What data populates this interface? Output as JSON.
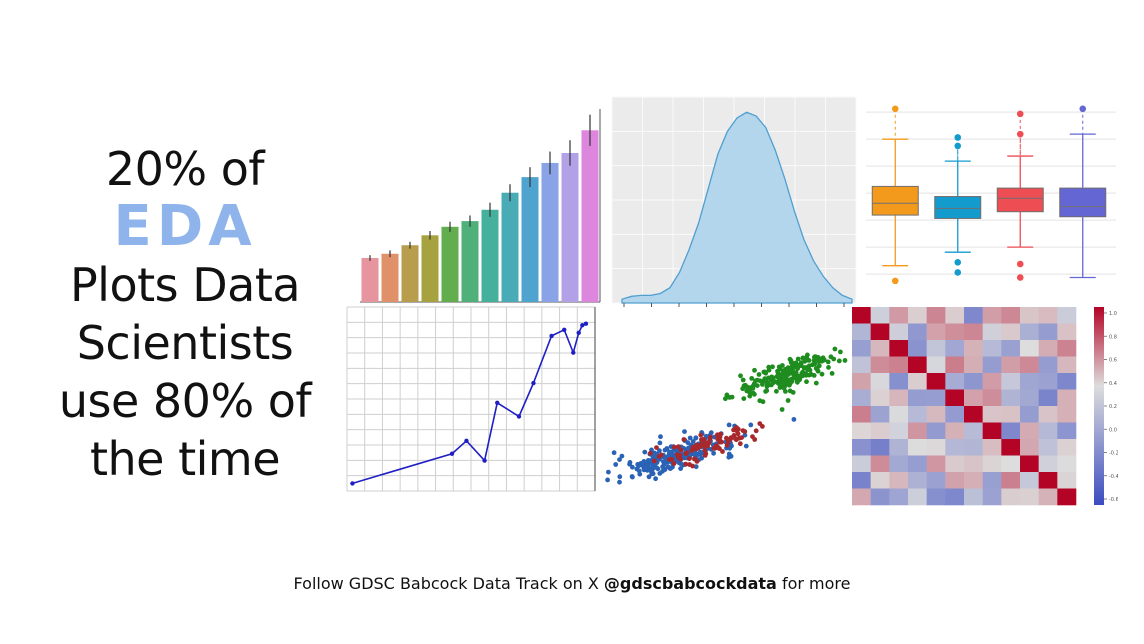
{
  "headline": {
    "line1": "20% of",
    "line2": "EDA",
    "line3": "Plots Data",
    "line4": "Scientists",
    "line5": "use 80% of",
    "line6": "the time"
  },
  "footer": {
    "prefix": "Follow GDSC Babcock Data Track on X",
    "handle": "@gdscbabcockdata",
    "suffix": "for more"
  },
  "colors": {
    "eda_accent": "#8fb4ec"
  },
  "chart_data": [
    {
      "type": "bar",
      "categories": [
        "",
        "",
        "",
        "",
        "",
        "",
        "",
        "",
        "",
        "",
        "",
        ""
      ],
      "values": [
        1.55,
        1.7,
        2.0,
        2.35,
        2.65,
        2.85,
        3.25,
        3.85,
        4.4,
        4.9,
        5.25,
        6.05
      ],
      "errors": [
        0.1,
        0.12,
        0.12,
        0.15,
        0.18,
        0.2,
        0.25,
        0.3,
        0.35,
        0.4,
        0.45,
        0.55
      ],
      "colors": [
        "#e6959e",
        "#e0916a",
        "#b89d4c",
        "#a6a23f",
        "#62ad4e",
        "#4fb07a",
        "#45b09c",
        "#48abb6",
        "#4ea3cf",
        "#8aa2e6",
        "#b3a1e8",
        "#dc86de"
      ],
      "ylim": [
        0,
        6.8
      ],
      "grid": false
    },
    {
      "type": "area",
      "x": [
        0,
        1,
        2,
        3,
        4,
        5,
        6,
        7,
        8,
        9,
        10,
        11,
        12,
        13,
        14,
        15,
        16,
        17,
        18,
        19,
        20,
        21,
        22,
        23,
        24
      ],
      "y": [
        0.02,
        0.035,
        0.04,
        0.04,
        0.05,
        0.08,
        0.16,
        0.28,
        0.42,
        0.6,
        0.78,
        0.9,
        0.97,
        1.0,
        0.98,
        0.92,
        0.8,
        0.65,
        0.48,
        0.33,
        0.22,
        0.14,
        0.08,
        0.04,
        0.02
      ],
      "xticks": 9,
      "grid": true
    },
    {
      "type": "box",
      "boxes": [
        {
          "min": 1.5,
          "q1": 4.5,
          "median": 5.2,
          "q3": 6.2,
          "max": 9.0,
          "outliers": [
            10.8,
            0.6
          ],
          "color": "#f39a1c"
        },
        {
          "min": 2.3,
          "q1": 4.3,
          "median": 4.9,
          "q3": 5.6,
          "max": 7.7,
          "outliers": [
            9.1,
            8.6,
            1.7,
            1.1
          ],
          "color": "#149bce"
        },
        {
          "min": 2.6,
          "q1": 4.7,
          "median": 5.5,
          "q3": 6.1,
          "max": 8.0,
          "outliers": [
            10.5,
            9.3,
            1.6,
            0.8
          ],
          "color": "#ee4d53"
        },
        {
          "min": 0.8,
          "q1": 4.4,
          "median": 5.0,
          "q3": 6.1,
          "max": 9.3,
          "outliers": [
            10.8
          ],
          "color": "#6466d4"
        }
      ],
      "ylim": [
        0,
        11.5
      ],
      "grid": true
    },
    {
      "type": "line",
      "x": [
        0,
        5.5,
        6.3,
        7.3,
        8.0,
        9.2,
        10.0,
        11.0,
        11.7,
        12.2,
        12.5,
        12.7,
        12.9
      ],
      "y": [
        0.0,
        1.95,
        2.8,
        1.5,
        5.3,
        4.4,
        6.6,
        9.7,
        10.1,
        8.6,
        9.9,
        10.4,
        10.5
      ],
      "color": "#1f1fc4",
      "xlim": [
        -0.3,
        13.4
      ],
      "ylim": [
        -0.5,
        11.6
      ],
      "grid": true
    },
    {
      "type": "scatter",
      "series": [
        {
          "color": "#2a62b6",
          "center": [
            3.2,
            2.8
          ],
          "spread": [
            1.3,
            0.9
          ],
          "count": 230
        },
        {
          "color": "#a8282c",
          "center": [
            4.6,
            3.4
          ],
          "spread": [
            1.2,
            0.8
          ],
          "count": 90
        },
        {
          "color": "#1f8c1f",
          "center": [
            8.0,
            7.4
          ],
          "spread": [
            1.1,
            1.0
          ],
          "count": 200
        }
      ],
      "xlim": [
        0,
        10.5
      ],
      "ylim": [
        0,
        10.5
      ]
    },
    {
      "type": "heatmap",
      "rows": 12,
      "cols": 12,
      "colorbar_ticks": [
        "1.0",
        "0.8",
        "0.6",
        "0.4",
        "0.2",
        "0.0",
        "-0.2",
        "-0.4",
        "-0.6"
      ]
    }
  ]
}
